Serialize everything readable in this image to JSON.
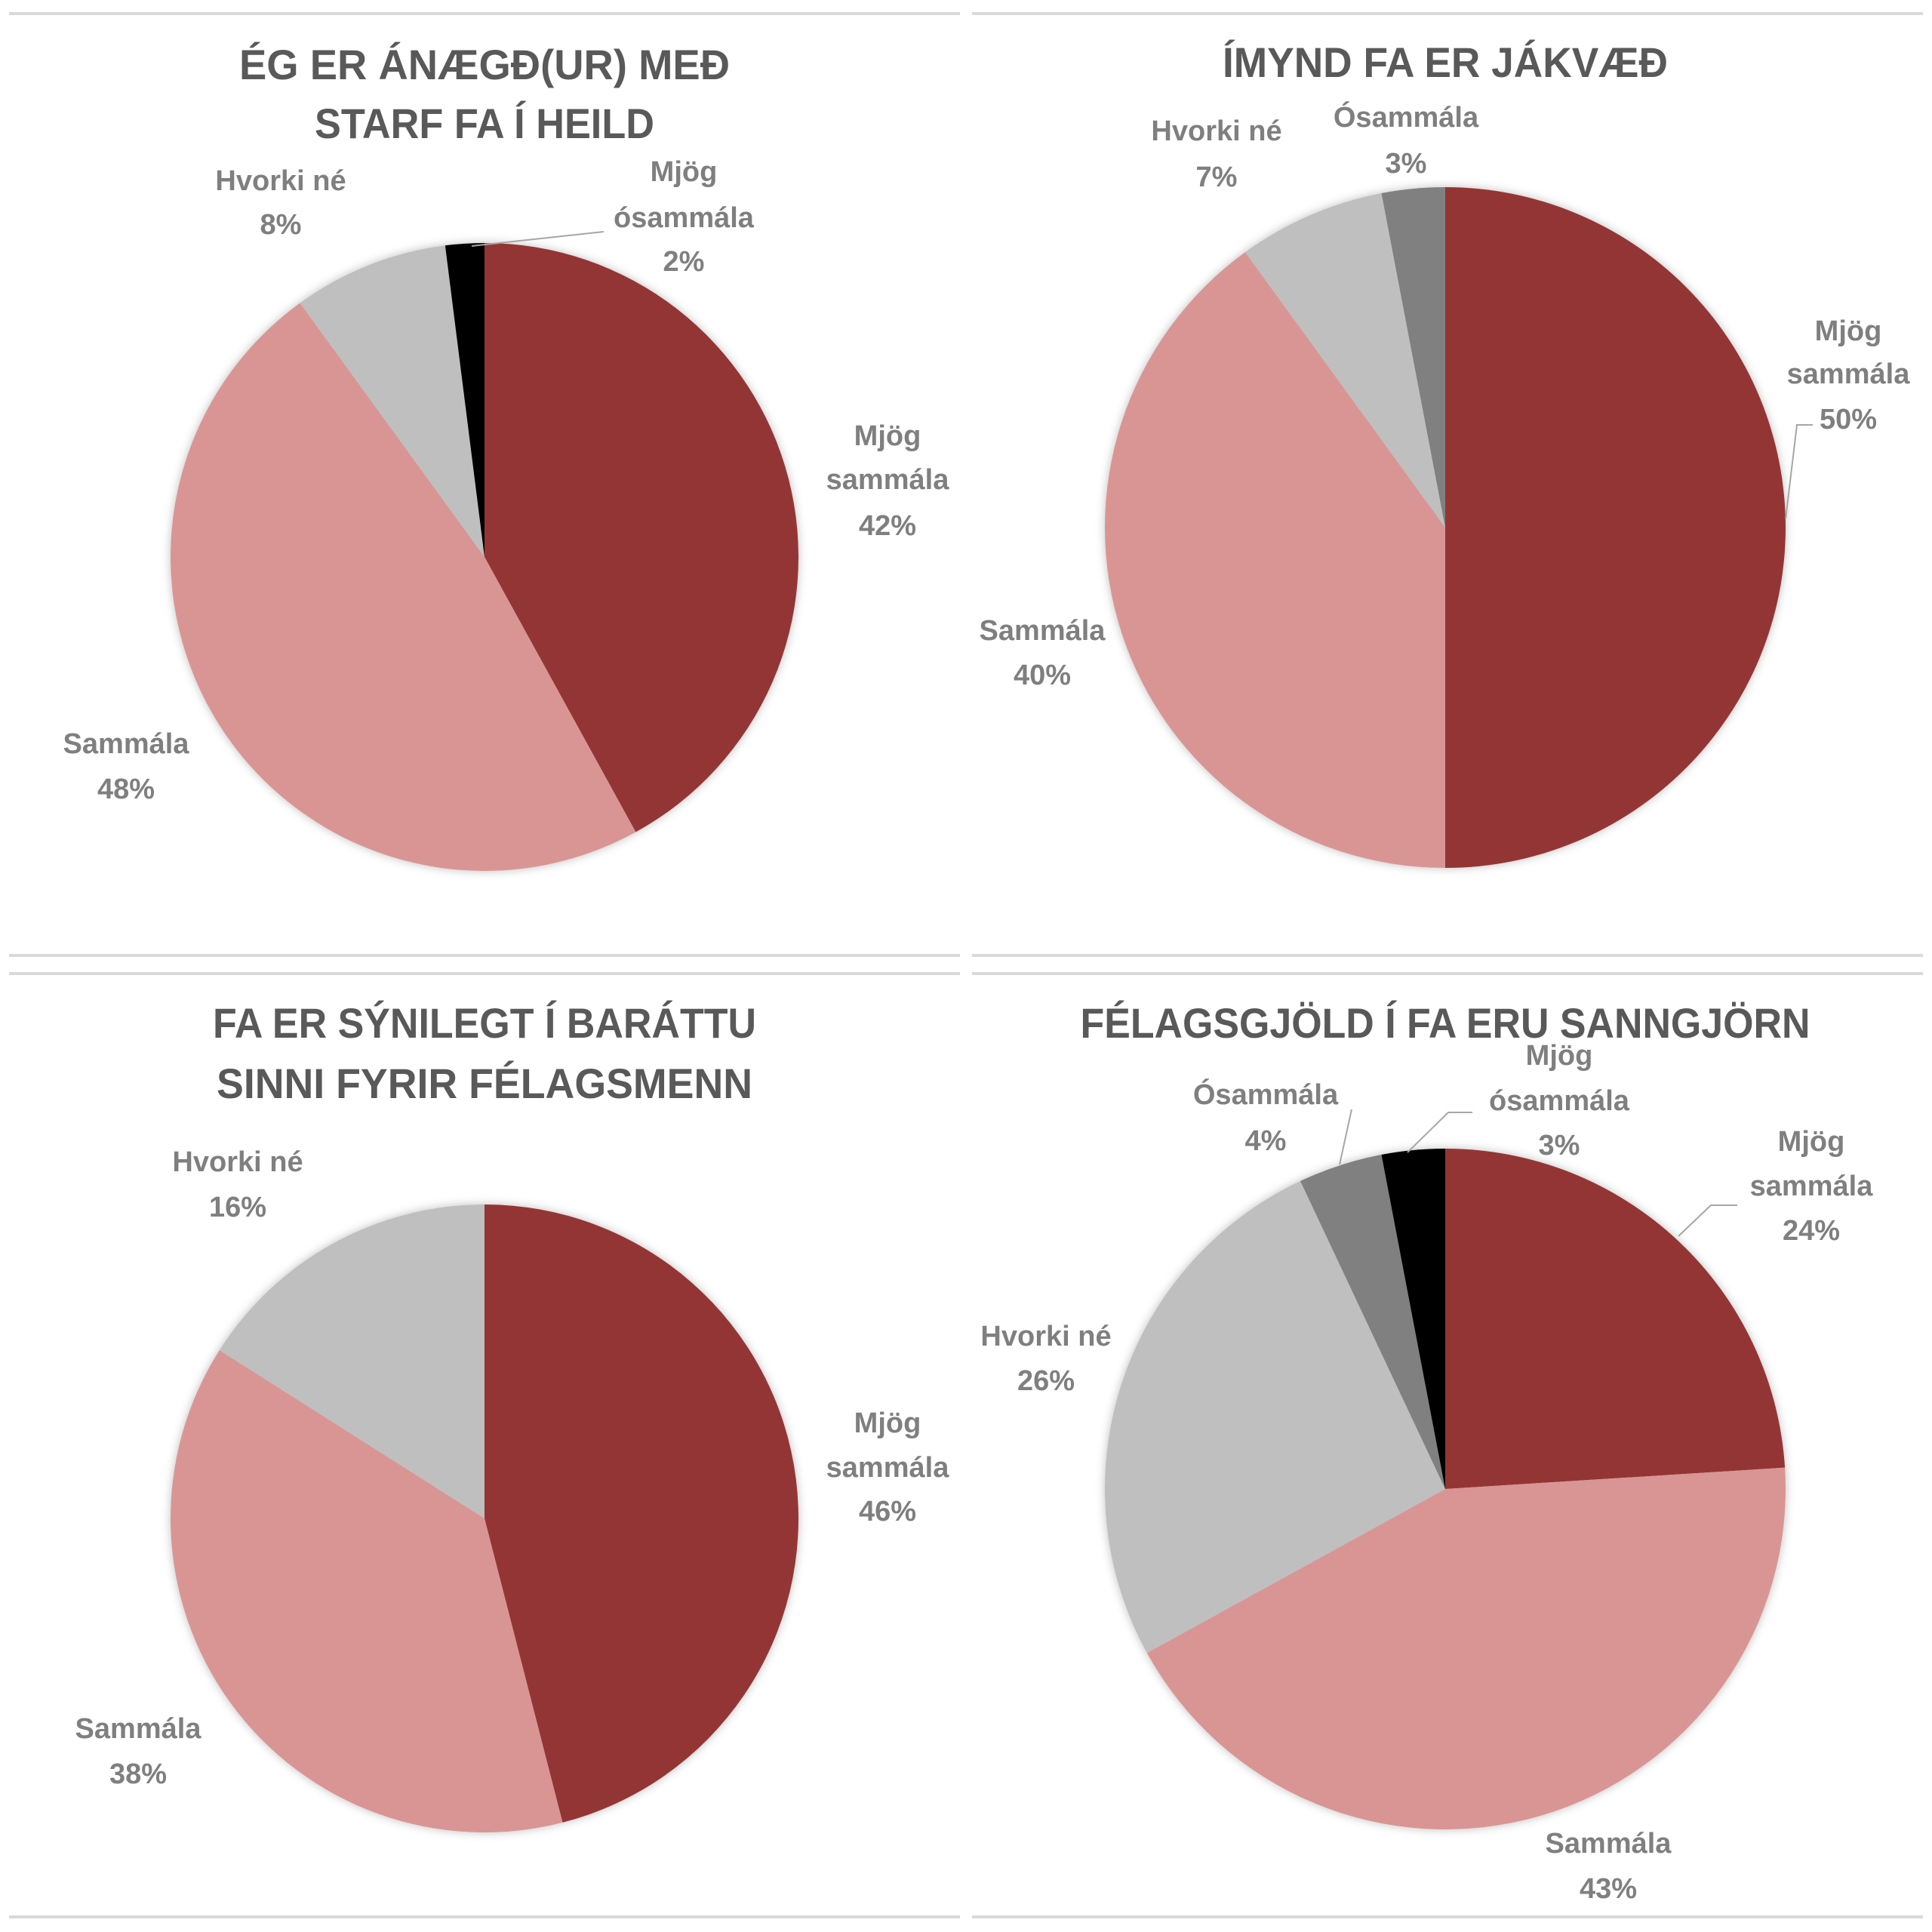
{
  "colors": {
    "Mjög sammála": "#943634",
    "Sammála": "#D99594",
    "Hvorki né": "#BFBFBF",
    "Ósammála": "#808080",
    "Mjög ósammála": "#000000",
    "title_text": "#595959",
    "label_text": "#7F7F7F"
  },
  "chart_data": [
    {
      "type": "pie",
      "title_lines": [
        "ÉG ER ÁNÆGÐ(UR) MEÐ",
        "STARF FA Í HEILD"
      ],
      "categories": [
        "Mjög sammála",
        "Sammála",
        "Hvorki né",
        "Mjög ósammála"
      ],
      "values": [
        42,
        48,
        8,
        2
      ],
      "labels": [
        [
          "Mjög",
          "sammála",
          "42%"
        ],
        [
          "Sammála",
          "48%"
        ],
        [
          "Hvorki né",
          "8%"
        ],
        [
          "Mjög",
          "ósammála",
          "2%"
        ]
      ]
    },
    {
      "type": "pie",
      "title_lines": [
        "ÍMYND FA ER JÁKVÆÐ"
      ],
      "categories": [
        "Mjög sammála",
        "Sammála",
        "Hvorki né",
        "Ósammála"
      ],
      "values": [
        50,
        40,
        7,
        3
      ],
      "labels": [
        [
          "Mjög",
          "sammála",
          "50%"
        ],
        [
          "Sammála",
          "40%"
        ],
        [
          "Hvorki né",
          "7%"
        ],
        [
          "Ósammála",
          "3%"
        ]
      ]
    },
    {
      "type": "pie",
      "title_lines": [
        "FA ER SÝNILEGT Í BARÁTTU",
        "SINNI FYRIR FÉLAGSMENN"
      ],
      "categories": [
        "Mjög sammála",
        "Sammála",
        "Hvorki né"
      ],
      "values": [
        46,
        38,
        16
      ],
      "labels": [
        [
          "Mjög",
          "sammála",
          "46%"
        ],
        [
          "Sammála",
          "38%"
        ],
        [
          "Hvorki né",
          "16%"
        ]
      ]
    },
    {
      "type": "pie",
      "title_lines": [
        "FÉLAGSGJÖLD Í FA ERU SANNGJÖRN"
      ],
      "categories": [
        "Mjög sammála",
        "Sammála",
        "Hvorki né",
        "Ósammála",
        "Mjög ósammála"
      ],
      "values": [
        24,
        43,
        26,
        4,
        3
      ],
      "labels": [
        [
          "Mjög",
          "sammála",
          "24%"
        ],
        [
          "Sammála",
          "43%"
        ],
        [
          "Hvorki né",
          "26%"
        ],
        [
          "Ósammála",
          "4%"
        ],
        [
          "Mjög",
          "ósammála",
          "3%"
        ]
      ]
    }
  ]
}
